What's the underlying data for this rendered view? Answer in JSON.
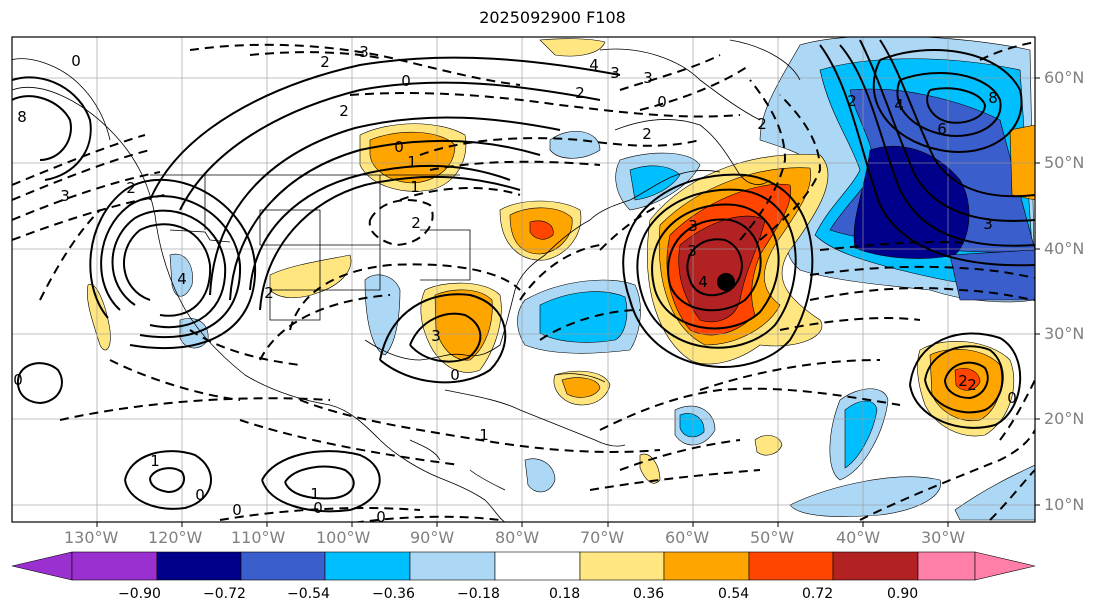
{
  "title": "2025092900 F108",
  "longitude_labels": [
    "130°W",
    "120°W",
    "110°W",
    "100°W",
    "90°W",
    "80°W",
    "70°W",
    "60°W",
    "50°W",
    "40°W",
    "30°W"
  ],
  "latitude_labels": [
    "60°N",
    "50°N",
    "40°N",
    "30°N",
    "20°N",
    "10°N"
  ],
  "colorbar": {
    "labels": [
      "−0.90",
      "−0.72",
      "−0.54",
      "−0.36",
      "−0.18",
      "0.18",
      "0.36",
      "0.54",
      "0.72",
      "0.90"
    ],
    "colors": [
      "#9b30d0",
      "#00008b",
      "#3a5fcd",
      "#00bfff",
      "#add8f5",
      "#ffffff",
      "#ffe680",
      "#ffa500",
      "#ff4500",
      "#b22222",
      "#ff7fa8"
    ]
  },
  "contour_labels": [
    "3",
    "2",
    "0",
    "2",
    "3",
    "8",
    "4",
    "3",
    "2",
    "1",
    "0",
    "2",
    "3",
    "2",
    "0",
    "8",
    "6",
    "4",
    "2",
    "4",
    "3",
    "2",
    "1",
    "0",
    "2",
    "0",
    "2",
    "3",
    "0",
    "1",
    "0",
    "1",
    "0",
    "3",
    "4",
    "3",
    "0",
    "2",
    "0",
    "0",
    "1",
    "2"
  ],
  "marker": "storm-center-dot"
}
